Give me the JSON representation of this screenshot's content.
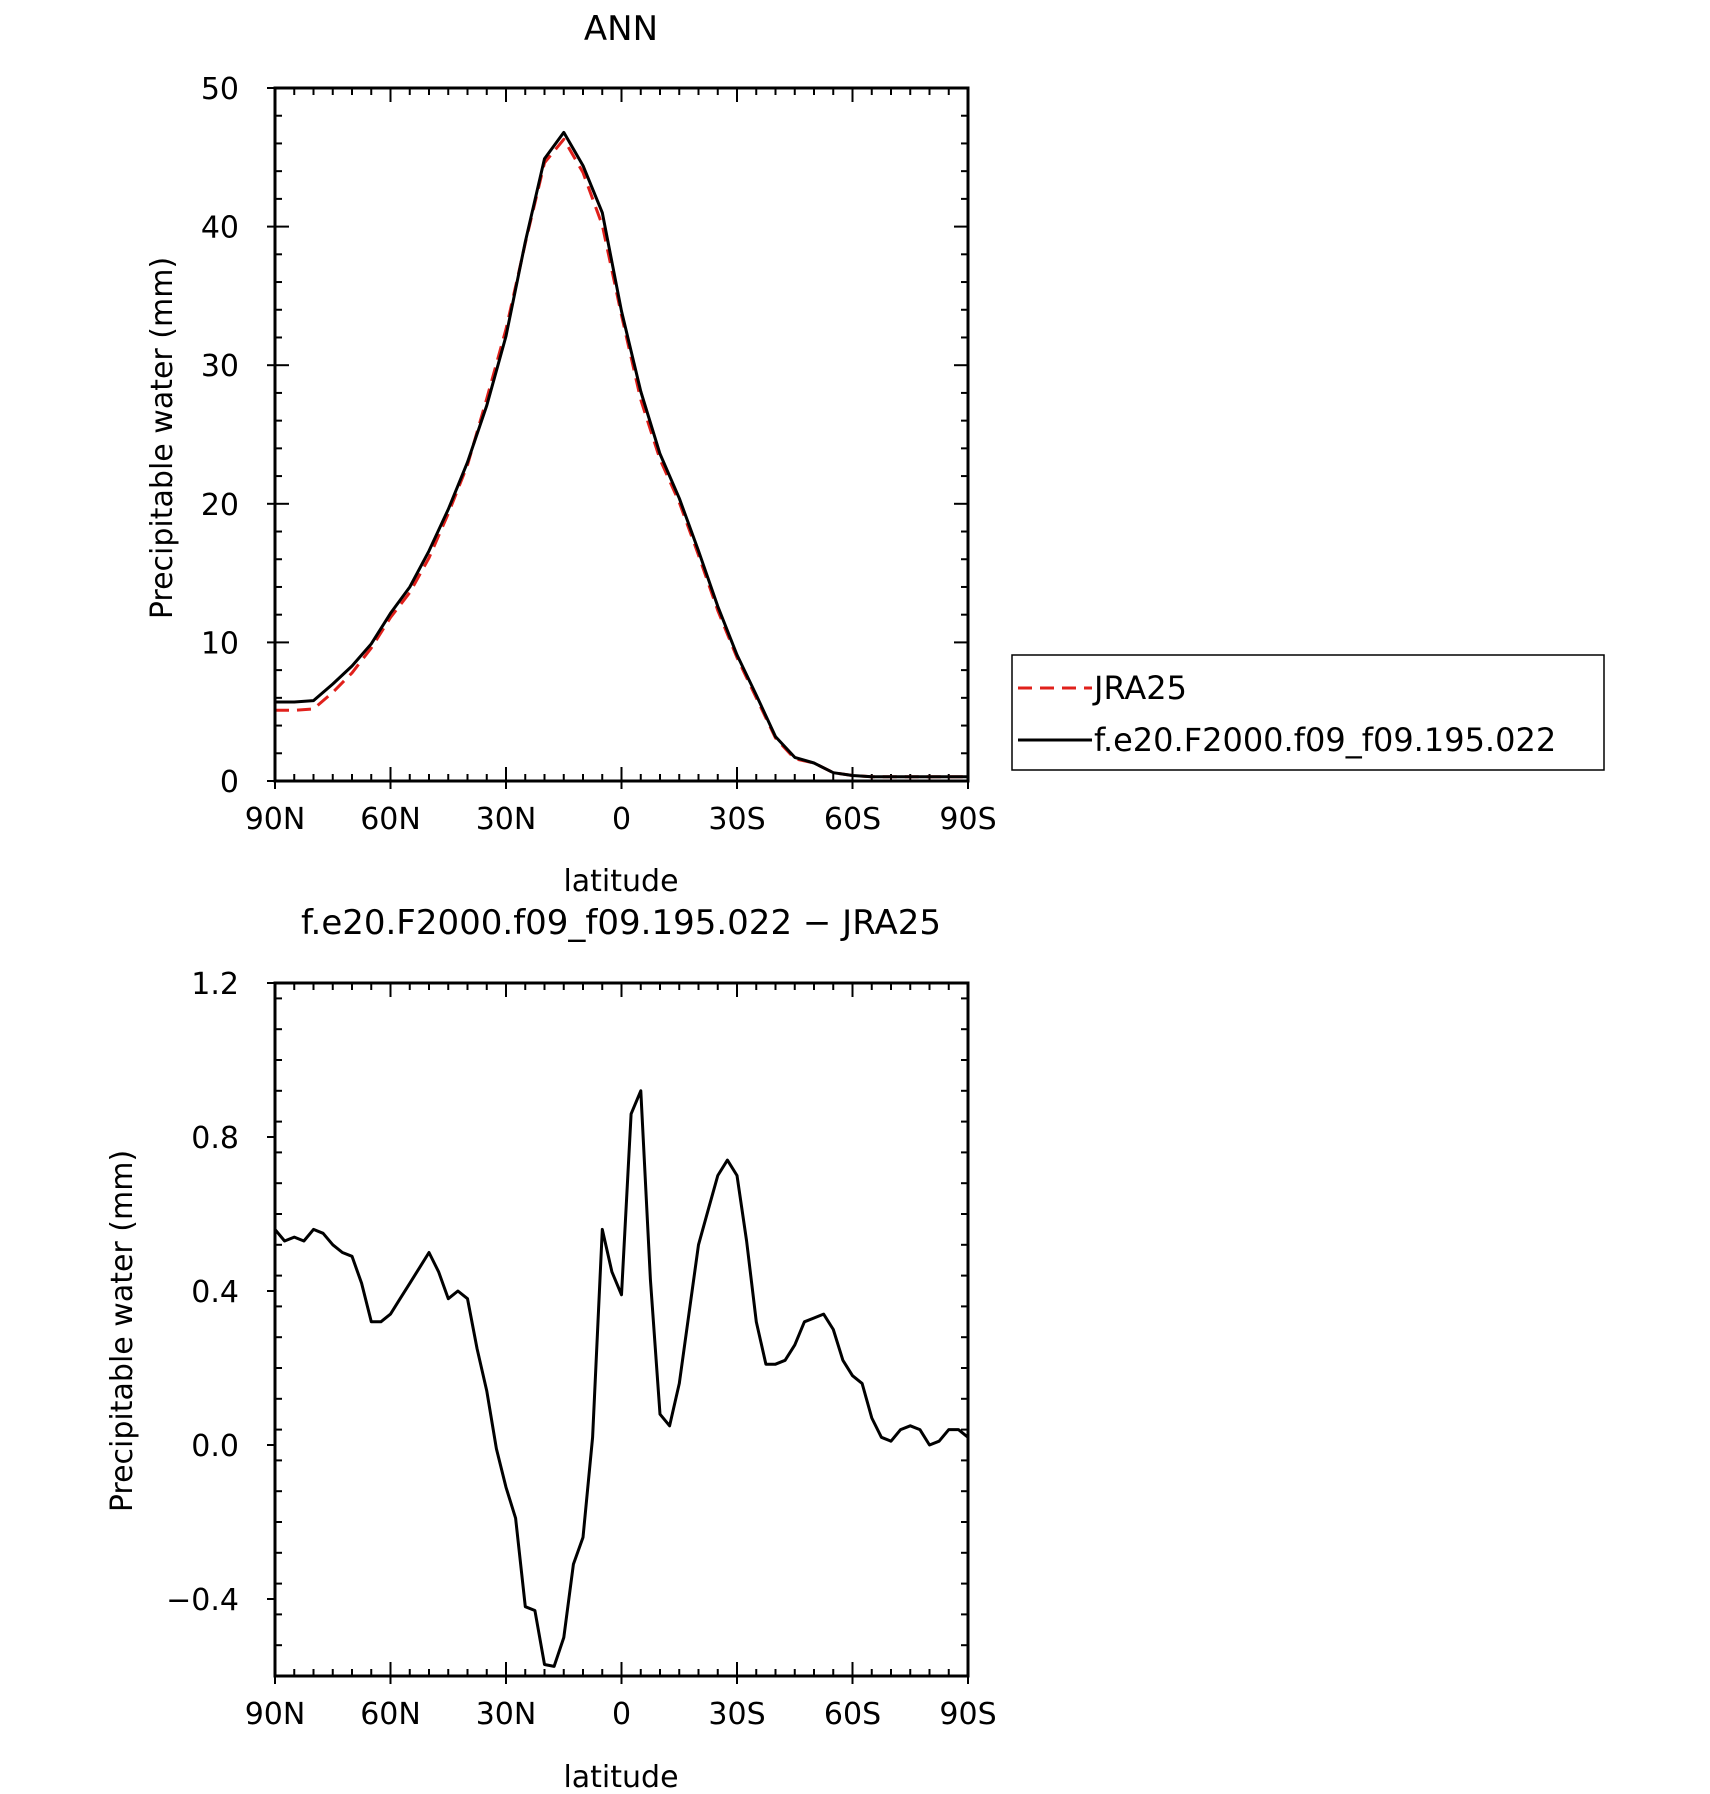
{
  "chart_data": [
    {
      "type": "line",
      "title": "ANN",
      "xlabel": "latitude",
      "ylabel": "Precipitable water (mm)",
      "xlim": [
        90,
        -90
      ],
      "ylim": [
        0,
        50
      ],
      "xticks": [
        {
          "value": 90,
          "label": "90N"
        },
        {
          "value": 60,
          "label": "60N"
        },
        {
          "value": 30,
          "label": "30N"
        },
        {
          "value": 0,
          "label": "0"
        },
        {
          "value": -30,
          "label": "30S"
        },
        {
          "value": -60,
          "label": "60S"
        },
        {
          "value": -90,
          "label": "90S"
        }
      ],
      "yticks": [
        {
          "value": 0,
          "label": "0"
        },
        {
          "value": 10,
          "label": "10"
        },
        {
          "value": 20,
          "label": "20"
        },
        {
          "value": 30,
          "label": "30"
        },
        {
          "value": 40,
          "label": "40"
        },
        {
          "value": 50,
          "label": "50"
        }
      ],
      "legend": "right",
      "series": [
        {
          "name": "JRA25",
          "color": "#e0201b",
          "dash": "dashed",
          "x": [
            90,
            85,
            80,
            75,
            70,
            65,
            60,
            55,
            50,
            45,
            40,
            35,
            30,
            25,
            20,
            15,
            10,
            5,
            0,
            -5,
            -10,
            -15,
            -20,
            -25,
            -30,
            -35,
            -40,
            -45,
            -50,
            -55,
            -60,
            -65,
            -70,
            -75,
            -80,
            -85,
            -90
          ],
          "y": [
            5.1,
            5.1,
            5.2,
            6.4,
            7.8,
            9.6,
            11.8,
            13.6,
            16.1,
            19.3,
            22.8,
            27.6,
            32.6,
            38.8,
            44.6,
            46.3,
            43.9,
            40.1,
            33.6,
            27.5,
            23.2,
            20.1,
            16.3,
            12.3,
            8.9,
            6.0,
            3.1,
            1.6,
            1.3,
            0.6,
            0.4,
            0.3,
            0.3,
            0.3,
            0.3,
            0.3,
            0.3
          ]
        },
        {
          "name": "f.e20.F2000.f09_f09.195.022",
          "color": "#000000",
          "dash": "solid",
          "x": [
            90,
            85,
            80,
            75,
            70,
            65,
            60,
            55,
            50,
            45,
            40,
            35,
            30,
            25,
            20,
            15,
            10,
            5,
            0,
            -5,
            -10,
            -15,
            -20,
            -25,
            -30,
            -35,
            -40,
            -45,
            -50,
            -55,
            -60,
            -65,
            -70,
            -75,
            -80,
            -85,
            -90
          ],
          "y": [
            5.7,
            5.7,
            5.8,
            7.0,
            8.3,
            9.9,
            12.1,
            14.0,
            16.6,
            19.6,
            23.0,
            27.1,
            32.1,
            38.9,
            44.9,
            46.8,
            44.4,
            41.0,
            33.9,
            28.1,
            23.6,
            20.4,
            16.6,
            12.6,
            9.1,
            6.2,
            3.2,
            1.7,
            1.3,
            0.6,
            0.4,
            0.3,
            0.3,
            0.3,
            0.3,
            0.3,
            0.3
          ]
        }
      ]
    },
    {
      "type": "line",
      "title": "f.e20.F2000.f09_f09.195.022 − JRA25",
      "xlabel": "latitude",
      "ylabel": "Precipitable water (mm)",
      "xlim": [
        90,
        -90
      ],
      "ylim": [
        -0.6,
        1.2
      ],
      "xticks": [
        {
          "value": 90,
          "label": "90N"
        },
        {
          "value": 60,
          "label": "60N"
        },
        {
          "value": 30,
          "label": "30N"
        },
        {
          "value": 0,
          "label": "0"
        },
        {
          "value": -30,
          "label": "30S"
        },
        {
          "value": -60,
          "label": "60S"
        },
        {
          "value": -90,
          "label": "90S"
        }
      ],
      "yticks": [
        {
          "value": -0.4,
          "label": "−0.4"
        },
        {
          "value": 0.0,
          "label": "0.0"
        },
        {
          "value": 0.4,
          "label": "0.4"
        },
        {
          "value": 0.8,
          "label": "0.8"
        },
        {
          "value": 1.2,
          "label": "1.2"
        }
      ],
      "series": [
        {
          "color": "#000000",
          "dash": "solid",
          "x": [
            90,
            87.5,
            85,
            82.5,
            80,
            77.5,
            75,
            72.5,
            70,
            67.5,
            65,
            62.5,
            60,
            57.5,
            55,
            52.5,
            50,
            47.5,
            45,
            42.5,
            40,
            37.5,
            35,
            32.5,
            30,
            27.5,
            25,
            22.5,
            20,
            17.5,
            15,
            12.5,
            10,
            7.5,
            5,
            2.5,
            0,
            -2.5,
            -5,
            -7.5,
            -10,
            -12.5,
            -15,
            -17.5,
            -20,
            -22.5,
            -25,
            -27.5,
            -30,
            -32.5,
            -35,
            -37.5,
            -40,
            -42.5,
            -45,
            -47.5,
            -50,
            -52.5,
            -55,
            -57.5,
            -60,
            -62.5,
            -65,
            -67.5,
            -70,
            -72.5,
            -75,
            -77.5,
            -80,
            -82.5,
            -85,
            -87.5,
            -90
          ],
          "y": [
            0.56,
            0.53,
            0.54,
            0.53,
            0.56,
            0.55,
            0.52,
            0.5,
            0.49,
            0.42,
            0.32,
            0.32,
            0.34,
            0.38,
            0.42,
            0.46,
            0.5,
            0.45,
            0.38,
            0.4,
            0.38,
            0.25,
            0.14,
            -0.01,
            -0.11,
            -0.19,
            -0.42,
            -0.43,
            -0.57,
            -0.575,
            -0.5,
            -0.31,
            -0.24,
            0.02,
            0.56,
            0.45,
            0.39,
            0.86,
            0.92,
            0.43,
            0.08,
            0.05,
            0.16,
            0.34,
            0.52,
            0.61,
            0.7,
            0.74,
            0.7,
            0.53,
            0.32,
            0.21,
            0.21,
            0.22,
            0.26,
            0.32,
            0.33,
            0.34,
            0.3,
            0.22,
            0.18,
            0.16,
            0.07,
            0.02,
            0.01,
            0.04,
            0.05,
            0.04,
            0.0,
            0.01,
            0.04,
            0.04,
            0.02
          ]
        }
      ]
    }
  ]
}
